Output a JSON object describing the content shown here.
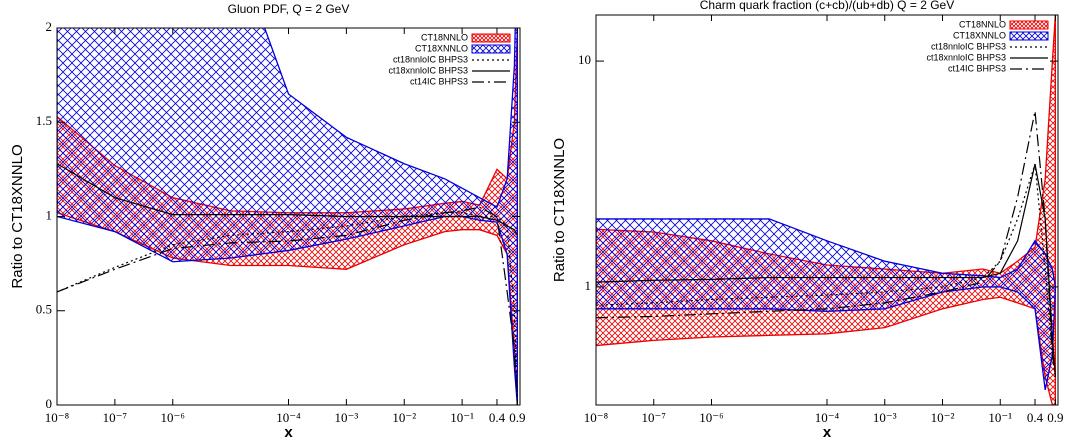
{
  "chart_data": [
    {
      "type": "band-line",
      "title": "Gluon PDF, Q = 2 GeV",
      "xlabel": "x",
      "ylabel": "Ratio to CT18XNNLO",
      "xlog": true,
      "ylog": false,
      "xlim": [
        1e-08,
        1
      ],
      "ylim": [
        0,
        2
      ],
      "xticks": [
        {
          "value": 1e-08,
          "label": "10⁻⁸"
        },
        {
          "value": 1e-07,
          "label": "10⁻⁷"
        },
        {
          "value": 1e-06,
          "label": "10⁻⁶"
        },
        {
          "value": 0.0001,
          "label": "10⁻⁴"
        },
        {
          "value": 0.001,
          "label": "10⁻³"
        },
        {
          "value": 0.01,
          "label": "10⁻²"
        },
        {
          "value": 0.1,
          "label": "10⁻¹"
        },
        0.4,
        0.9
      ],
      "yticks": [
        0,
        0.5,
        1,
        1.5,
        2
      ],
      "x": [
        1e-08,
        1e-07,
        1e-06,
        1e-05,
        0.0001,
        0.001,
        0.01,
        0.05,
        0.1,
        0.2,
        0.4,
        0.6,
        0.8,
        0.9
      ],
      "series": [
        {
          "name": "CT18NNLO",
          "color": "#ee0000",
          "lower": [
            1.02,
            0.92,
            0.78,
            0.74,
            0.74,
            0.72,
            0.85,
            0.92,
            0.93,
            0.93,
            0.9,
            0.8,
            0.3,
            0
          ],
          "upper": [
            1.53,
            1.27,
            1.1,
            1.03,
            1.02,
            1.02,
            1.04,
            1.07,
            1.08,
            1.06,
            1.25,
            1.2,
            1.5,
            2
          ]
        },
        {
          "name": "CT18XNNLO",
          "color": "#0000dd",
          "lower": [
            1.0,
            0.92,
            0.76,
            0.78,
            0.82,
            0.88,
            0.95,
            1.0,
            1.0,
            0.98,
            0.97,
            0.8,
            0.2,
            0
          ],
          "upper": [
            2.5,
            2.5,
            2.5,
            2.5,
            1.65,
            1.42,
            1.28,
            1.2,
            1.15,
            1.1,
            1.05,
            1.2,
            1.8,
            2.5
          ]
        },
        {
          "name": "ct18nnloIC BHPS3",
          "color": "#000000",
          "dash": "dotted",
          "values": [
            0.6,
            0.73,
            0.85,
            0.9,
            0.92,
            0.95,
            1.0,
            1.02,
            1.02,
            1.0,
            1.0,
            0.95,
            0.5,
            0
          ]
        },
        {
          "name": "ct18xnnloIC BHPS3",
          "color": "#000000",
          "dash": "solid",
          "values": [
            1.28,
            1.1,
            1.01,
            1.01,
            1.01,
            1.0,
            1.0,
            1.0,
            1.0,
            1.0,
            0.98,
            0.95,
            0.93,
            0.9
          ]
        },
        {
          "name": "ct14IC BHPS3",
          "color": "#000000",
          "dash": "dashdot",
          "values": [
            0.6,
            0.72,
            0.83,
            0.86,
            0.87,
            0.9,
            0.98,
            1.02,
            1.03,
            1.05,
            1.0,
            0.6,
            0.3,
            0
          ]
        }
      ]
    },
    {
      "type": "band-line",
      "title": "Charm quark fraction (c+cb)/(ub+db)   Q = 2 GeV",
      "xlabel": "x",
      "ylabel": "Ratio to CT18XNNLO",
      "xlog": true,
      "ylog": true,
      "xlim": [
        1e-08,
        1
      ],
      "ylim": [
        0.3,
        16
      ],
      "xticks": [
        {
          "value": 1e-08,
          "label": "10⁻⁸"
        },
        {
          "value": 1e-07,
          "label": "10⁻⁷"
        },
        {
          "value": 1e-06,
          "label": "10⁻⁶"
        },
        {
          "value": 0.0001,
          "label": "10⁻⁴"
        },
        {
          "value": 0.001,
          "label": "10⁻³"
        },
        {
          "value": 0.01,
          "label": "10⁻²"
        },
        {
          "value": 0.1,
          "label": "10⁻¹"
        },
        0.4,
        0.9
      ],
      "yticks": [
        1,
        10
      ],
      "x": [
        1e-08,
        1e-07,
        1e-06,
        1e-05,
        0.0001,
        0.001,
        0.01,
        0.05,
        0.1,
        0.2,
        0.4,
        0.6,
        0.8,
        0.9
      ],
      "series": [
        {
          "name": "CT18NNLO",
          "color": "#ee0000",
          "lower": [
            0.55,
            0.58,
            0.6,
            0.61,
            0.62,
            0.66,
            0.8,
            0.88,
            0.9,
            0.85,
            0.8,
            0.4,
            0.3,
            0.3
          ],
          "upper": [
            1.8,
            1.75,
            1.6,
            1.4,
            1.25,
            1.2,
            1.15,
            1.2,
            1.15,
            1.3,
            1.5,
            3,
            10,
            16
          ]
        },
        {
          "name": "CT18XNNLO",
          "color": "#0000dd",
          "lower": [
            0.8,
            0.8,
            0.8,
            0.8,
            0.78,
            0.8,
            0.95,
            1.0,
            1.0,
            0.95,
            0.8,
            0.35,
            0.5,
            1
          ],
          "upper": [
            2.0,
            2.0,
            2.0,
            2.0,
            1.6,
            1.3,
            1.15,
            1.12,
            1.1,
            1.2,
            1.6,
            1.4,
            1.2,
            1
          ]
        },
        {
          "name": "ct18nnloIC BHPS3",
          "color": "#000000",
          "dash": "dotted",
          "values": [
            0.83,
            0.85,
            0.88,
            0.9,
            0.92,
            0.95,
            1.0,
            1.1,
            1.3,
            2,
            3.5,
            1.2,
            0.5,
            0.4
          ]
        },
        {
          "name": "ct18xnnloIC BHPS3",
          "color": "#000000",
          "dash": "solid",
          "values": [
            1.05,
            1.07,
            1.08,
            1.1,
            1.1,
            1.1,
            1.1,
            1.1,
            1.15,
            1.6,
            3.5,
            2,
            0.6,
            0.4
          ]
        },
        {
          "name": "ct14IC BHPS3",
          "color": "#000000",
          "dash": "dashdot",
          "values": [
            0.73,
            0.74,
            0.76,
            0.78,
            0.8,
            0.85,
            0.95,
            1.05,
            1.3,
            2.5,
            6,
            2,
            0.5,
            0.4
          ]
        }
      ]
    }
  ]
}
